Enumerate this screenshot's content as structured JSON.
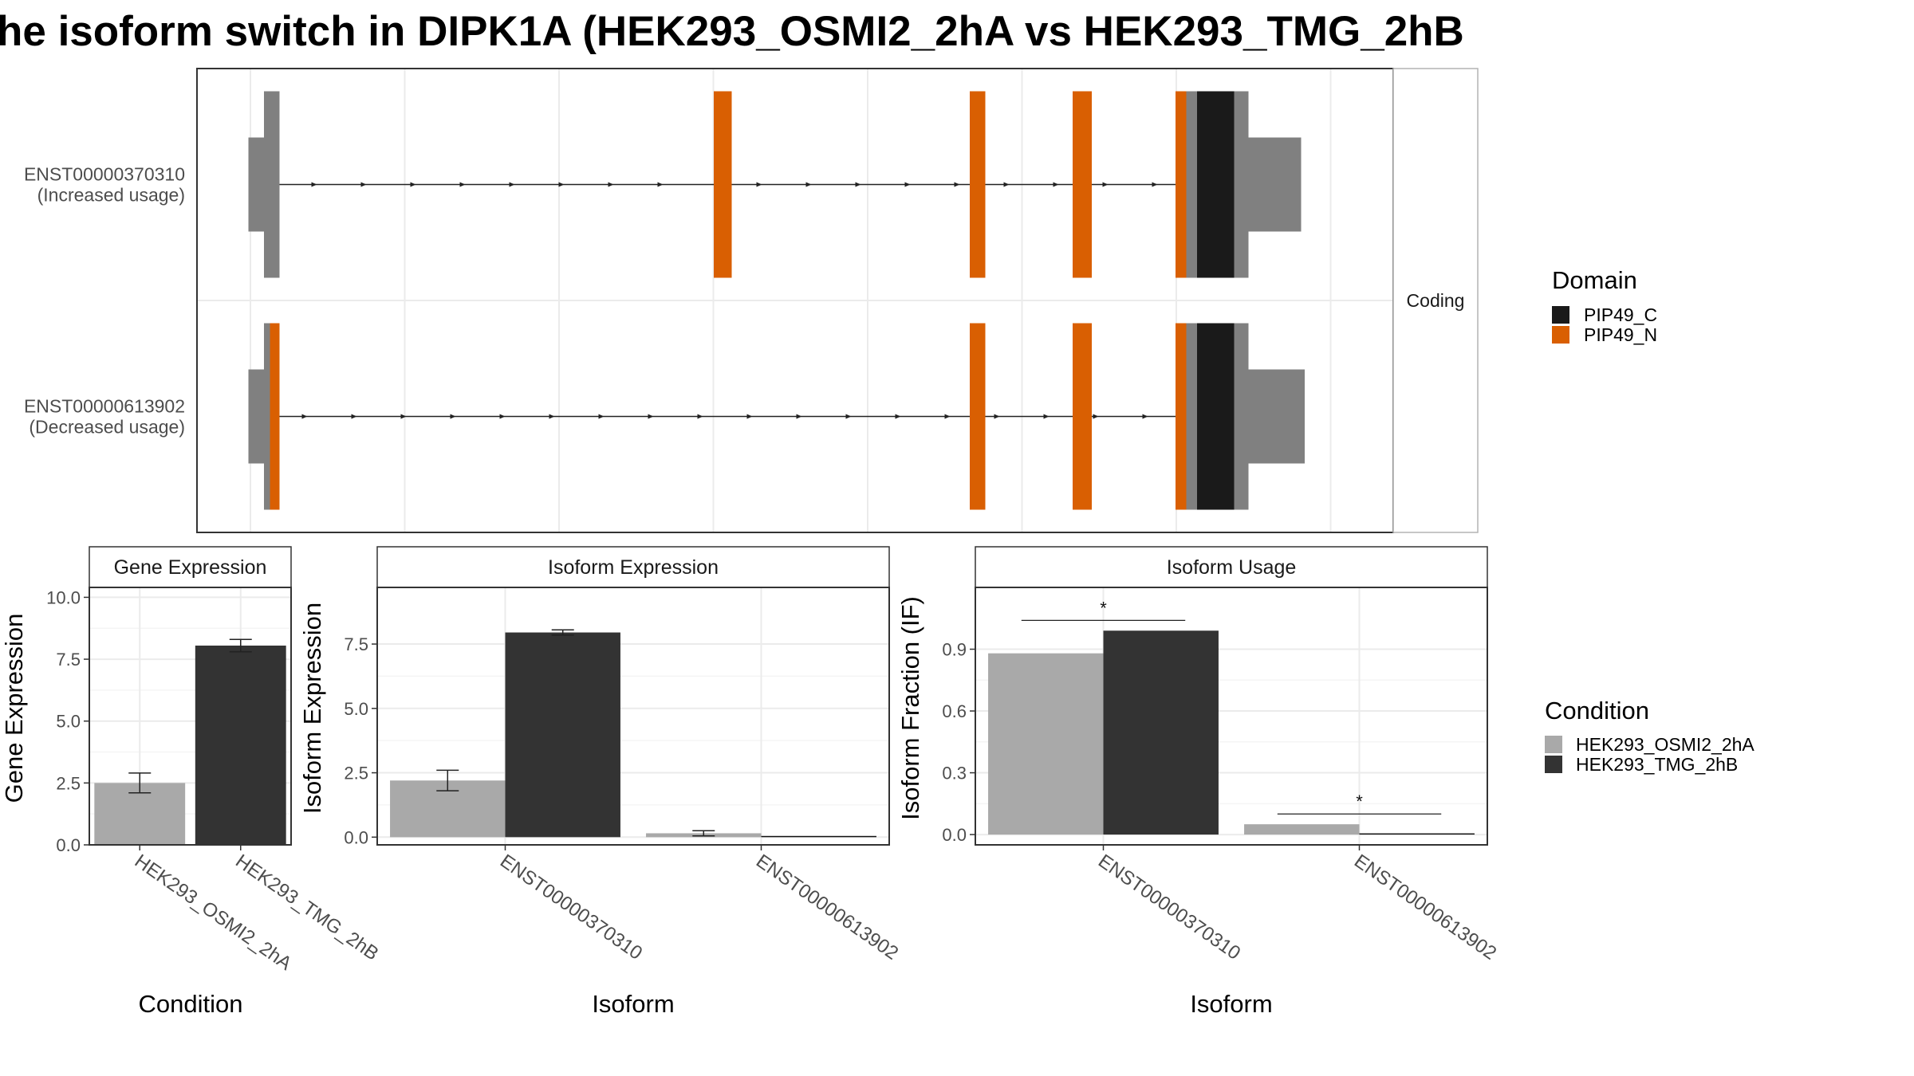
{
  "title": "he isoform switch in DIPK1A (HEK293_OSMI2_2hA vs HEK293_TMG_2hB",
  "colors": {
    "utr": "#808080",
    "pip49_c": "#1a1a1a",
    "pip49_n": "#d95f02",
    "cond_a": "#a9a9a9",
    "cond_b": "#333333",
    "grid": "#ebebeb",
    "frame": "#333333"
  },
  "chart_data": [
    {
      "type": "gene-structure",
      "facet_label": "Coding",
      "transcripts": [
        {
          "id": "ENST00000370310",
          "usage_label": "(Increased usage)",
          "features": [
            {
              "start": 0.043,
              "end": 0.069,
              "kind": "utr"
            },
            {
              "start": 0.056,
              "end": 0.069,
              "kind": "cds"
            },
            {
              "start": 0.432,
              "end": 0.447,
              "kind": "pip49_n"
            },
            {
              "start": 0.646,
              "end": 0.659,
              "kind": "pip49_n"
            },
            {
              "start": 0.732,
              "end": 0.748,
              "kind": "pip49_n"
            },
            {
              "start": 0.818,
              "end": 0.827,
              "kind": "pip49_n"
            },
            {
              "start": 0.827,
              "end": 0.836,
              "kind": "cds"
            },
            {
              "start": 0.836,
              "end": 0.867,
              "kind": "pip49_c"
            },
            {
              "start": 0.867,
              "end": 0.879,
              "kind": "cds"
            },
            {
              "start": 0.879,
              "end": 0.923,
              "kind": "utr"
            }
          ]
        },
        {
          "id": "ENST00000613902",
          "usage_label": "(Decreased usage)",
          "features": [
            {
              "start": 0.043,
              "end": 0.061,
              "kind": "utr"
            },
            {
              "start": 0.056,
              "end": 0.061,
              "kind": "cds"
            },
            {
              "start": 0.061,
              "end": 0.069,
              "kind": "pip49_n"
            },
            {
              "start": 0.646,
              "end": 0.659,
              "kind": "pip49_n"
            },
            {
              "start": 0.732,
              "end": 0.748,
              "kind": "pip49_n"
            },
            {
              "start": 0.818,
              "end": 0.827,
              "kind": "pip49_n"
            },
            {
              "start": 0.827,
              "end": 0.836,
              "kind": "cds"
            },
            {
              "start": 0.836,
              "end": 0.867,
              "kind": "pip49_c"
            },
            {
              "start": 0.867,
              "end": 0.879,
              "kind": "cds"
            },
            {
              "start": 0.879,
              "end": 0.926,
              "kind": "utr"
            }
          ]
        }
      ],
      "legend": {
        "title": "Domain",
        "entries": [
          {
            "name": "PIP49_C",
            "color": "#1a1a1a"
          },
          {
            "name": "PIP49_N",
            "color": "#d95f02"
          }
        ]
      }
    },
    {
      "type": "bar",
      "panel_title": "Gene Expression",
      "xlabel": "Condition",
      "ylabel": "Gene Expression",
      "ylim": [
        0,
        10.4
      ],
      "yticks": [
        "0.0",
        "2.5",
        "5.0",
        "7.5",
        "10.0"
      ],
      "categories": [
        "HEK293_OSMI2_2hA",
        "HEK293_TMG_2hB"
      ],
      "values": [
        2.5,
        8.05
      ],
      "errors": [
        [
          2.1,
          2.9
        ],
        [
          7.8,
          8.3
        ]
      ],
      "colors": [
        "#a9a9a9",
        "#333333"
      ]
    },
    {
      "type": "bar",
      "panel_title": "Isoform Expression",
      "xlabel": "Isoform",
      "ylabel": "Isoform Expression",
      "ylim": [
        -0.3,
        9.7
      ],
      "yticks": [
        "0.0",
        "2.5",
        "5.0",
        "7.5"
      ],
      "categories": [
        "ENST00000370310",
        "ENST00000613902"
      ],
      "series": [
        {
          "name": "HEK293_OSMI2_2hA",
          "values": [
            2.2,
            0.15
          ],
          "errors": [
            [
              1.8,
              2.6
            ],
            [
              0.05,
              0.25
            ]
          ]
        },
        {
          "name": "HEK293_TMG_2hB",
          "values": [
            7.95,
            0.0
          ],
          "errors": [
            [
              7.85,
              8.05
            ],
            [
              0.0,
              0.0
            ]
          ]
        }
      ]
    },
    {
      "type": "bar",
      "panel_title": "Isoform Usage",
      "xlabel": "Isoform",
      "ylabel": "Isoform Fraction (IF)",
      "ylim": [
        -0.05,
        1.2
      ],
      "yticks": [
        "0.0",
        "0.3",
        "0.6",
        "0.9"
      ],
      "categories": [
        "ENST00000370310",
        "ENST00000613902"
      ],
      "series": [
        {
          "name": "HEK293_OSMI2_2hA",
          "values": [
            0.88,
            0.05
          ]
        },
        {
          "name": "HEK293_TMG_2hB",
          "values": [
            0.99,
            0.0
          ]
        }
      ],
      "significance": [
        {
          "label": "*",
          "category": "ENST00000370310",
          "y": 1.04
        },
        {
          "label": "*",
          "category": "ENST00000613902",
          "y": 0.1
        }
      ]
    }
  ],
  "condition_legend": {
    "title": "Condition",
    "entries": [
      {
        "name": "HEK293_OSMI2_2hA",
        "color": "#a9a9a9"
      },
      {
        "name": "HEK293_TMG_2hB",
        "color": "#333333"
      }
    ]
  }
}
